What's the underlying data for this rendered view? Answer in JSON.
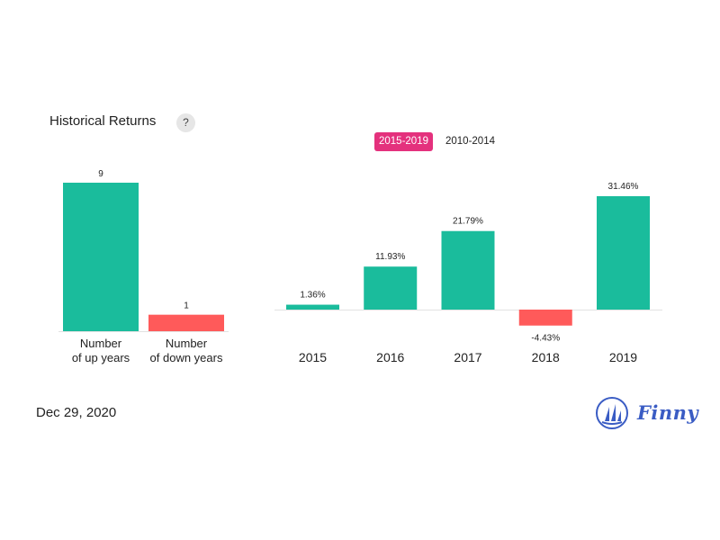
{
  "header": {
    "title": "Historical Returns",
    "help": "?"
  },
  "tabs": [
    {
      "label": "2015-2019",
      "active": true
    },
    {
      "label": "2010-2014",
      "active": false
    }
  ],
  "footer": {
    "date": "Dec 29, 2020",
    "brand": "Finny"
  },
  "colors": {
    "positive": "#1abc9c",
    "negative": "#ff5a5a",
    "accent": "#e4317d",
    "brand": "#3a5cc4"
  },
  "chart_data": [
    {
      "type": "bar",
      "categories": [
        [
          "Number",
          "of up years"
        ],
        [
          "Number",
          "of down years"
        ]
      ],
      "values": [
        9,
        1
      ],
      "value_labels": [
        "9",
        "1"
      ],
      "title": "",
      "xlabel": "",
      "ylabel": ""
    },
    {
      "type": "bar",
      "categories": [
        "2015",
        "2016",
        "2017",
        "2018",
        "2019"
      ],
      "values": [
        1.36,
        11.93,
        21.79,
        -4.43,
        31.46
      ],
      "value_labels": [
        "1.36%",
        "11.93%",
        "21.79%",
        "-4.43%",
        "31.46%"
      ],
      "title": "",
      "xlabel": "",
      "ylabel": ""
    }
  ]
}
